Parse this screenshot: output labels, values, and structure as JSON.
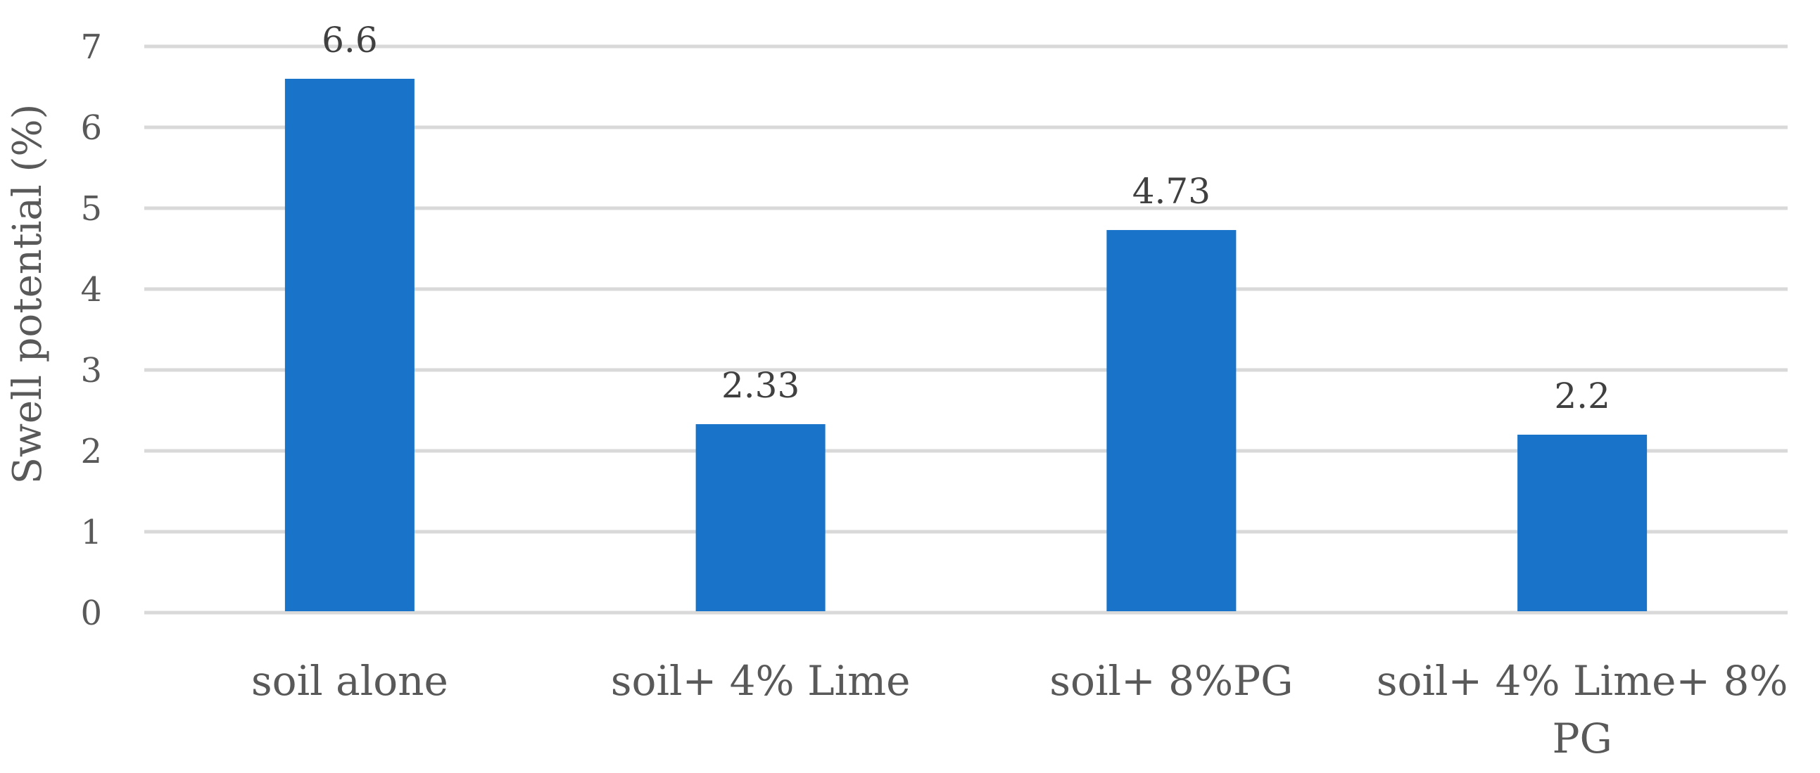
{
  "chart_data": {
    "type": "bar",
    "title": "",
    "xlabel": "",
    "ylabel": "Swell potential (%)",
    "ylim": [
      0,
      7
    ],
    "yticks": [
      0,
      1,
      2,
      3,
      4,
      5,
      6,
      7
    ],
    "grid": true,
    "legend": "none",
    "bar_color": "#1873c9",
    "categories": [
      "soil alone",
      "soil+ 4% Lime",
      "soil+ 8%PG",
      "soil+ 4% Lime+ 8% PG"
    ],
    "category_lines": [
      [
        "soil alone"
      ],
      [
        "soil+ 4% Lime"
      ],
      [
        "soil+ 8%PG"
      ],
      [
        "soil+ 4% Lime+ 8%",
        "PG"
      ]
    ],
    "values": [
      6.6,
      2.33,
      4.73,
      2.2
    ],
    "data_labels": [
      "6.6",
      "2.33",
      "4.73",
      "2.2"
    ]
  }
}
